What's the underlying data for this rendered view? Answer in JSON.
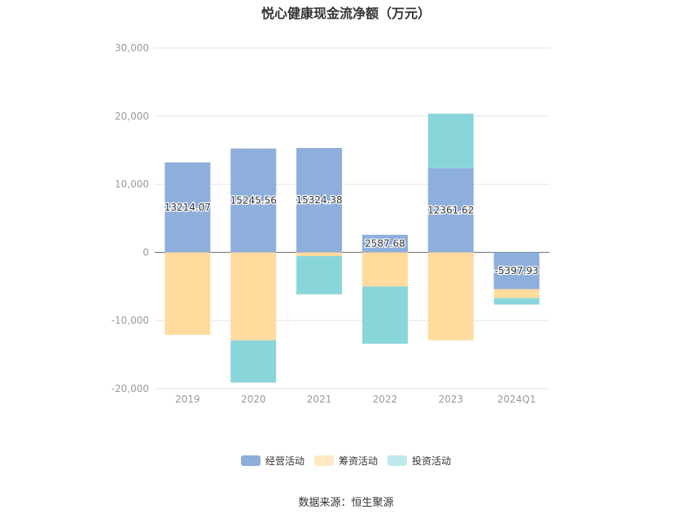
{
  "chart_data": {
    "type": "bar",
    "stacked": true,
    "title": "悦心健康现金流净额（万元）",
    "categories": [
      "2019",
      "2020",
      "2021",
      "2022",
      "2023",
      "2024Q1"
    ],
    "ylim": [
      -20000,
      30000
    ],
    "yticks": [
      "30,000",
      "20,000",
      "10,000",
      "0",
      "-10,000",
      "-20,000"
    ],
    "ytick_values": [
      30000,
      20000,
      10000,
      0,
      -10000,
      -20000
    ],
    "grid": true,
    "legend_position": "bottom",
    "series": [
      {
        "name": "经营活动",
        "color": "#8eaedc",
        "values": [
          13214.07,
          15245.56,
          15324.38,
          2587.68,
          12361.62,
          -5397.93
        ],
        "labels": [
          "13214.07",
          "15245.56",
          "15324.38",
          "2587.68",
          "12361.62",
          "-5397.93"
        ]
      },
      {
        "name": "筹资活动",
        "color": "#ffdc9e",
        "values": [
          -12100,
          -12900,
          -550,
          -5000,
          -12900,
          -1300
        ]
      },
      {
        "name": "投资活动",
        "color": "#89d6da",
        "values": [
          0,
          -6200,
          -5600,
          -8400,
          8000,
          -950
        ]
      }
    ]
  },
  "legend": [
    {
      "label": "经营活动",
      "color": "#8eaedc"
    },
    {
      "label": "筹资活动",
      "color": "#ffe8c4"
    },
    {
      "label": "投资活动",
      "color": "#bfe9eb"
    }
  ],
  "source": "数据来源：恒生聚源"
}
